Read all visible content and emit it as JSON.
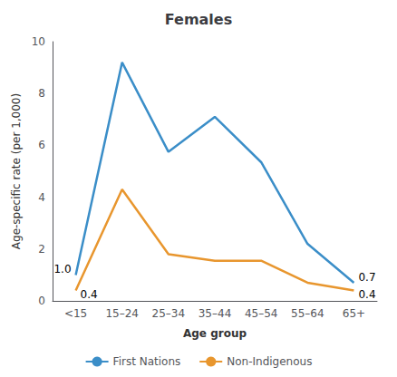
{
  "chart_data": {
    "type": "line",
    "title": "Females",
    "xlabel": "Age group",
    "ylabel": "Age-specific rate (per 1,000)",
    "categories": [
      "<15",
      "15–24",
      "25–34",
      "35–44",
      "45–54",
      "55–64",
      "65+"
    ],
    "series": [
      {
        "name": "First Nations",
        "color": "#3B8EC8",
        "values": [
          1.0,
          9.2,
          5.75,
          7.1,
          5.35,
          2.2,
          0.7
        ]
      },
      {
        "name": "Non-Indigenous",
        "color": "#E8962E",
        "values": [
          0.4,
          4.3,
          1.8,
          1.55,
          1.55,
          0.7,
          0.4
        ]
      }
    ],
    "ylim": [
      0,
      10
    ],
    "yticks": [
      0,
      2,
      4,
      6,
      8,
      10
    ],
    "grid": false,
    "legend": "bottom",
    "annotations": [
      {
        "series": "First Nations",
        "category": "<15",
        "text": "1.0"
      },
      {
        "series": "First Nations",
        "category": "65+",
        "text": "0.7"
      },
      {
        "series": "Non-Indigenous",
        "category": "<15",
        "text": "0.4"
      },
      {
        "series": "Non-Indigenous",
        "category": "65+",
        "text": "0.4"
      }
    ]
  }
}
